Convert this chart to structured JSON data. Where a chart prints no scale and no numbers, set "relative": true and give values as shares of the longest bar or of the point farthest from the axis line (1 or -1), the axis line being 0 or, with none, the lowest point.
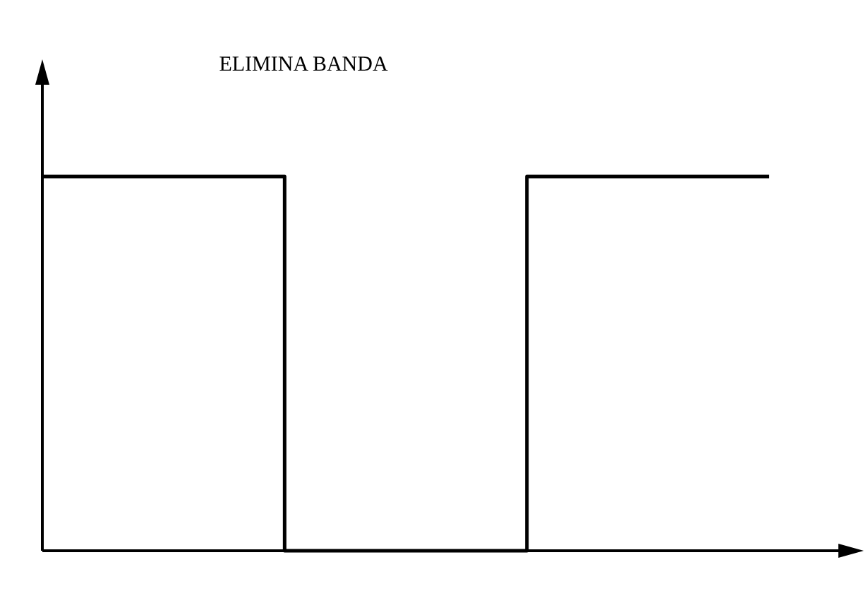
{
  "chart_data": {
    "type": "step",
    "title": "ELIMINA BANDA",
    "categories": [
      null,
      null,
      null,
      null
    ],
    "values": [
      1,
      0,
      1,
      1
    ],
    "color": "#000000",
    "relative": true,
    "marker": "none",
    "line_style": "solid"
  }
}
